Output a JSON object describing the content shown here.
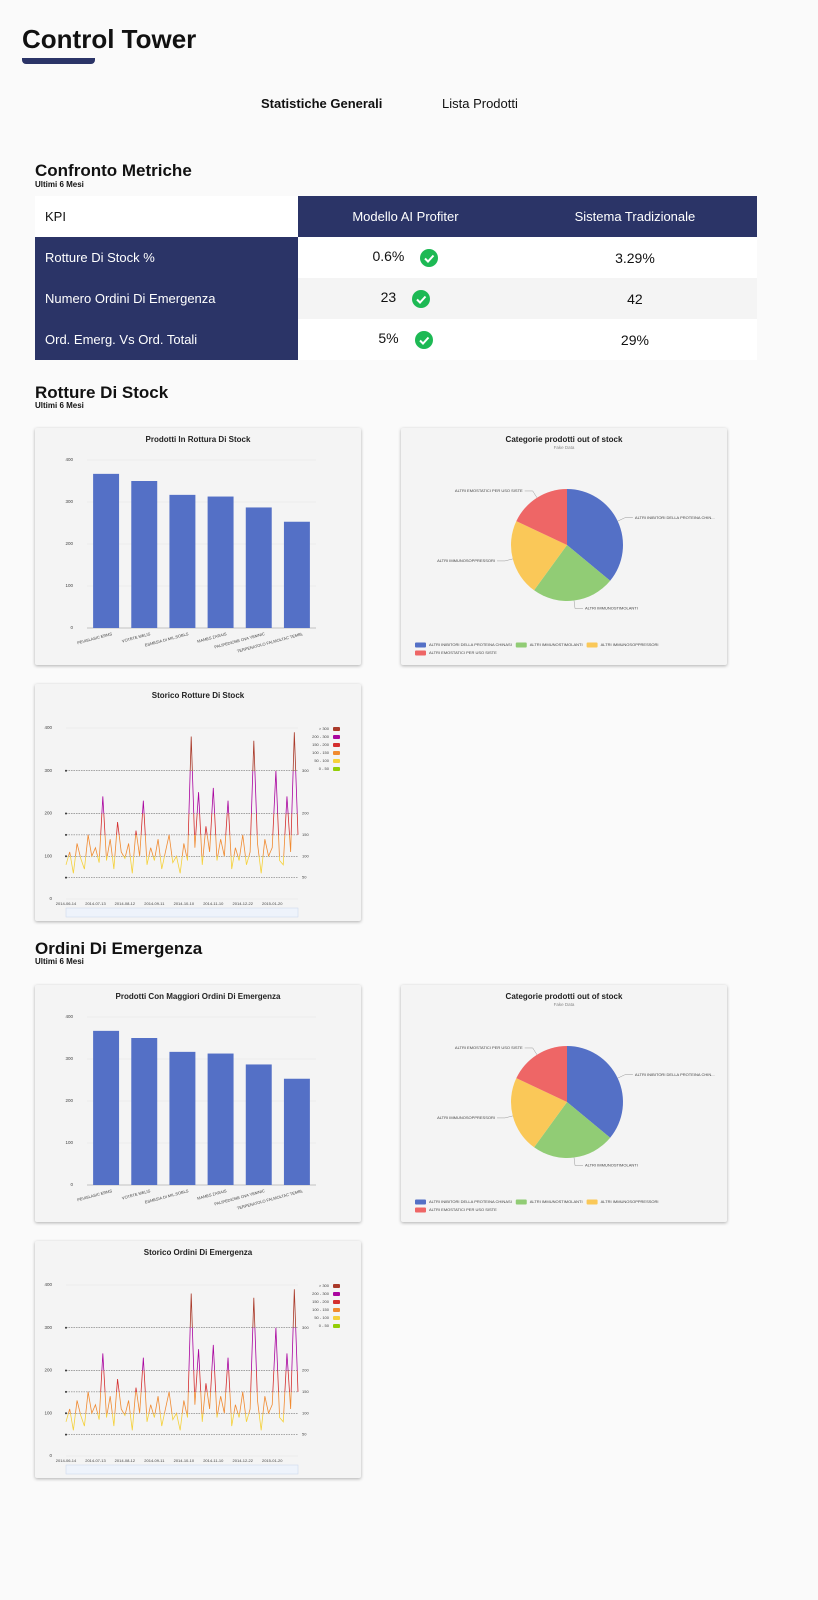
{
  "header": {
    "title": "Control Tower"
  },
  "tabs": [
    "Statistiche Generali",
    "Lista Prodotti"
  ],
  "metrics": {
    "title": "Confronto Metriche",
    "subtitle": "Ultimi 6 Mesi",
    "table": {
      "headers": [
        "KPI",
        "Modello AI Profiter",
        "Sistema Tradizionale"
      ],
      "rows": [
        [
          "Rotture Di Stock %",
          "0.6%",
          "3.29%"
        ],
        [
          "Numero Ordini Di Emergenza",
          "23",
          "42"
        ],
        [
          "Ord. Emerg. Vs Ord. Totali",
          "5%",
          "29%"
        ]
      ]
    }
  },
  "stock_section": {
    "title": "Rotture Di Stock",
    "subtitle": "Ultimi 6 Mesi"
  },
  "emergency_section": {
    "title": "Ordini Di Emergenza",
    "subtitle": "Ultimi 6 Mesi"
  },
  "chart_data": [
    {
      "type": "bar",
      "title": "Prodotti In Rottura Di Stock",
      "categories": [
        "PEVISLASIC ERMS",
        "VOTETE MELIS",
        "ESMESIA DI MIL.SOBLS",
        "MAMES ZARAIS",
        "PALIPEDIONE OVA YEMNIC",
        "TERPENATOLO FALMOLTAC TEMBL"
      ],
      "values": [
        367,
        350,
        317,
        313,
        287,
        253
      ],
      "color": "#5470c6",
      "ylim": [
        0,
        400
      ],
      "yticks": [
        0,
        100,
        200,
        300,
        400
      ],
      "grid": true
    },
    {
      "type": "pie",
      "title": "Categorie prodotti out of stock",
      "subtitle": "Fake Data",
      "categories": [
        "ALTRI INIBITORI DELLA PROTEINA CHINASI",
        "ALTRI IMMUNOSTIMOLANTI",
        "ALTRI IMMUNOSOPPRESSORI",
        "ALTRI EMOSTATICI PER USO SISTE"
      ],
      "slice_labels": [
        "ALTRI INIBITORI DELLA PROTEINA CHIN...",
        "ALTRI IMMUNOSTIMOLANTI",
        "ALTRI IMMUNOSOPPRESSORI",
        "ALTRI EMOSTATICI PER USO SISTE"
      ],
      "values": [
        36,
        24,
        22,
        18
      ],
      "colors": [
        "#5470c6",
        "#91cc75",
        "#fac858",
        "#ee6666"
      ]
    },
    {
      "type": "line",
      "title": "Storico Rotture Di Stock",
      "categories": [
        "2014-06-14",
        null,
        null,
        null,
        null,
        null,
        null,
        null,
        "2014-07-13",
        null,
        null,
        null,
        null,
        null,
        null,
        null,
        "2014-08-12",
        null,
        null,
        null,
        null,
        null,
        null,
        null,
        "2014-09-11",
        null,
        null,
        null,
        null,
        null,
        null,
        null,
        "2014-10-10",
        null,
        null,
        null,
        null,
        null,
        null,
        null,
        "2014-11-10",
        null,
        null,
        null,
        null,
        null,
        null,
        null,
        "2014-12-22",
        null,
        null,
        null,
        null,
        null,
        null,
        null,
        "2015-01-20",
        null,
        null,
        null,
        null,
        null,
        null,
        null
      ],
      "values": [
        80,
        110,
        60,
        130,
        95,
        70,
        150,
        100,
        120,
        85,
        240,
        90,
        140,
        70,
        180,
        110,
        95,
        130,
        60,
        160,
        100,
        230,
        80,
        120,
        90,
        140,
        70,
        110,
        150,
        85,
        100,
        60,
        130,
        90,
        380,
        120,
        250,
        80,
        170,
        110,
        260,
        90,
        140,
        100,
        230,
        70,
        120,
        90,
        150,
        80,
        110,
        370,
        130,
        60,
        140,
        100,
        120,
        300,
        90,
        80,
        240,
        110,
        390,
        150
      ],
      "ylim": [
        0,
        400
      ],
      "yticks": [
        0,
        100,
        200,
        300,
        400
      ],
      "mark_lines": [
        50,
        100,
        150,
        200,
        300
      ],
      "pieces": [
        {
          "label": "> 300",
          "min": 300,
          "max": 400,
          "color": "#aa3a2a"
        },
        {
          "label": "200 - 300",
          "min": 200,
          "max": 300,
          "color": "#aa069f"
        },
        {
          "label": "150 - 200",
          "min": 150,
          "max": 200,
          "color": "#d42f2f"
        },
        {
          "label": "100 - 150",
          "min": 100,
          "max": 150,
          "color": "#f08a30"
        },
        {
          "label": "50 - 100",
          "min": 50,
          "max": 100,
          "color": "#f5d13b"
        },
        {
          "label": "0 - 50",
          "min": 0,
          "max": 50,
          "color": "#93ce07"
        }
      ]
    },
    {
      "type": "bar",
      "title": "Prodotti Con Maggiori Ordini Di Emergenza",
      "categories": [
        "PEVISLASIC ERMS",
        "VOTETE MELIS",
        "ESMESIA DI MIL.SOBLS",
        "MAMES ZARAIS",
        "PALIPEDIONE OVA YEMNIC",
        "TERPENATOLO FALMOLTAC TEMBL"
      ],
      "values": [
        367,
        350,
        317,
        313,
        287,
        253
      ],
      "color": "#5470c6",
      "ylim": [
        0,
        400
      ],
      "yticks": [
        0,
        100,
        200,
        300,
        400
      ],
      "grid": true
    },
    {
      "type": "pie",
      "title": "Categorie prodotti out of stock",
      "subtitle": "Fake Data",
      "categories": [
        "ALTRI INIBITORI DELLA PROTEINA CHINASI",
        "ALTRI IMMUNOSTIMOLANTI",
        "ALTRI IMMUNOSOPPRESSORI",
        "ALTRI EMOSTATICI PER USO SISTE"
      ],
      "slice_labels": [
        "ALTRI INIBITORI DELLA PROTEINA CHIN...",
        "ALTRI IMMUNOSTIMOLANTI",
        "ALTRI IMMUNOSOPPRESSORI",
        "ALTRI EMOSTATICI PER USO SISTE"
      ],
      "values": [
        36,
        24,
        22,
        18
      ],
      "colors": [
        "#5470c6",
        "#91cc75",
        "#fac858",
        "#ee6666"
      ]
    },
    {
      "type": "line",
      "title": "Storico Ordini Di Emergenza",
      "categories": [
        "2014-06-14",
        null,
        null,
        null,
        null,
        null,
        null,
        null,
        "2014-07-13",
        null,
        null,
        null,
        null,
        null,
        null,
        null,
        "2014-08-12",
        null,
        null,
        null,
        null,
        null,
        null,
        null,
        "2014-09-11",
        null,
        null,
        null,
        null,
        null,
        null,
        null,
        "2014-10-10",
        null,
        null,
        null,
        null,
        null,
        null,
        null,
        "2014-11-10",
        null,
        null,
        null,
        null,
        null,
        null,
        null,
        "2014-12-22",
        null,
        null,
        null,
        null,
        null,
        null,
        null,
        "2015-01-20",
        null,
        null,
        null,
        null,
        null,
        null,
        null
      ],
      "values": [
        80,
        110,
        60,
        130,
        95,
        70,
        150,
        100,
        120,
        85,
        240,
        90,
        140,
        70,
        180,
        110,
        95,
        130,
        60,
        160,
        100,
        230,
        80,
        120,
        90,
        140,
        70,
        110,
        150,
        85,
        100,
        60,
        130,
        90,
        380,
        120,
        250,
        80,
        170,
        110,
        260,
        90,
        140,
        100,
        230,
        70,
        120,
        90,
        150,
        80,
        110,
        370,
        130,
        60,
        140,
        100,
        120,
        300,
        90,
        80,
        240,
        110,
        390,
        150
      ],
      "ylim": [
        0,
        400
      ],
      "yticks": [
        0,
        100,
        200,
        300,
        400
      ],
      "mark_lines": [
        50,
        100,
        150,
        200,
        300
      ],
      "pieces": [
        {
          "label": "> 300",
          "min": 300,
          "max": 400,
          "color": "#aa3a2a"
        },
        {
          "label": "200 - 300",
          "min": 200,
          "max": 300,
          "color": "#aa069f"
        },
        {
          "label": "150 - 200",
          "min": 150,
          "max": 200,
          "color": "#d42f2f"
        },
        {
          "label": "100 - 150",
          "min": 100,
          "max": 150,
          "color": "#f08a30"
        },
        {
          "label": "50 - 100",
          "min": 50,
          "max": 100,
          "color": "#f5d13b"
        },
        {
          "label": "0 - 50",
          "min": 0,
          "max": 50,
          "color": "#93ce07"
        }
      ]
    }
  ]
}
